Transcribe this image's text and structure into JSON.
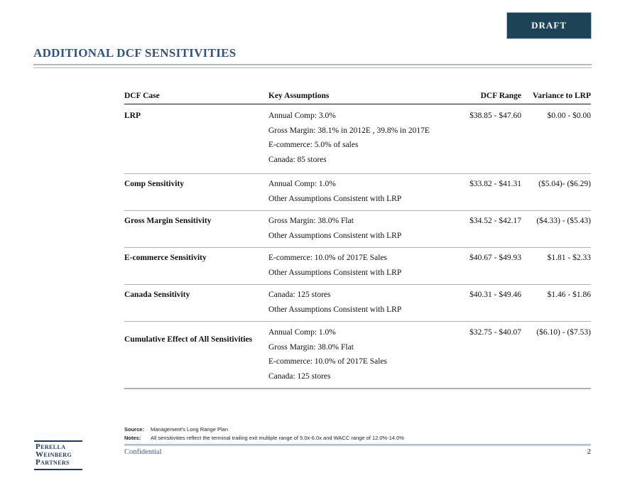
{
  "stamp": {
    "label": "DRAFT"
  },
  "page": {
    "title": "ADDITIONAL DCF SENSITIVITIES",
    "confidential": "Confidential",
    "page_number": "2"
  },
  "logo": {
    "line1": "Perella",
    "line2": "Weinberg",
    "line3": "Partners"
  },
  "table": {
    "headers": {
      "case": "DCF Case",
      "assumptions": "Key Assumptions",
      "range": "DCF Range",
      "variance": "Variance to LRP"
    },
    "rows": [
      {
        "case": "LRP",
        "assumptions": [
          "Annual Comp: 3.0%",
          "Gross Margin: 38.1% in 2012E , 39.8% in 2017E",
          "E-commerce: 5.0% of sales",
          "Canada: 85 stores"
        ],
        "range": "$38.85 - $47.60",
        "variance": "$0.00 - $0.00"
      },
      {
        "case": "Comp Sensitivity",
        "assumptions": [
          "Annual Comp: 1.0%",
          "Other Assumptions Consistent with LRP"
        ],
        "range": "$33.82 - $41.31",
        "variance": "($5.04)- ($6.29)"
      },
      {
        "case": "Gross Margin Sensitivity",
        "assumptions": [
          "Gross Margin: 38.0% Flat",
          "Other Assumptions Consistent with LRP"
        ],
        "range": "$34.52 - $42.17",
        "variance": "($4.33) - ($5.43)"
      },
      {
        "case": "E-commerce Sensitivity",
        "assumptions": [
          "E-commerce: 10.0% of 2017E Sales",
          "Other Assumptions Consistent with LRP"
        ],
        "range": "$40.67 - $49.93",
        "variance": "$1.81 - $2.33"
      },
      {
        "case": "Canada Sensitivity",
        "assumptions": [
          "Canada: 125 stores",
          "Other Assumptions Consistent with LRP"
        ],
        "range": "$40.31 - $49.46",
        "variance": "$1.46 - $1.86"
      },
      {
        "case": "Cumulative Effect of All Sensitivities",
        "assumptions": [
          "Annual Comp: 1.0%",
          "Gross Margin: 38.0% Flat",
          "E-commerce: 10.0% of 2017E Sales",
          "Canada: 125 stores"
        ],
        "range": "$32.75 - $40.07",
        "variance": "($6.10) - ($7.53)"
      }
    ]
  },
  "footnotes": {
    "source_label": "Source:",
    "source_text": "Management's Long Range Plan",
    "notes_label": "Notes:",
    "notes_text": "All sensitivities reflect the terminal trailing exit multiple range of 5.0x-6.0x and WACC range of 12.0%-14.0%"
  },
  "colors": {
    "title_blue": "#2e5387",
    "draft_background": "#1c4356",
    "logo_navy": "#1e3a66",
    "confidential_blue": "#3a6191",
    "footer_rule_blue": "#bfd0e4"
  }
}
